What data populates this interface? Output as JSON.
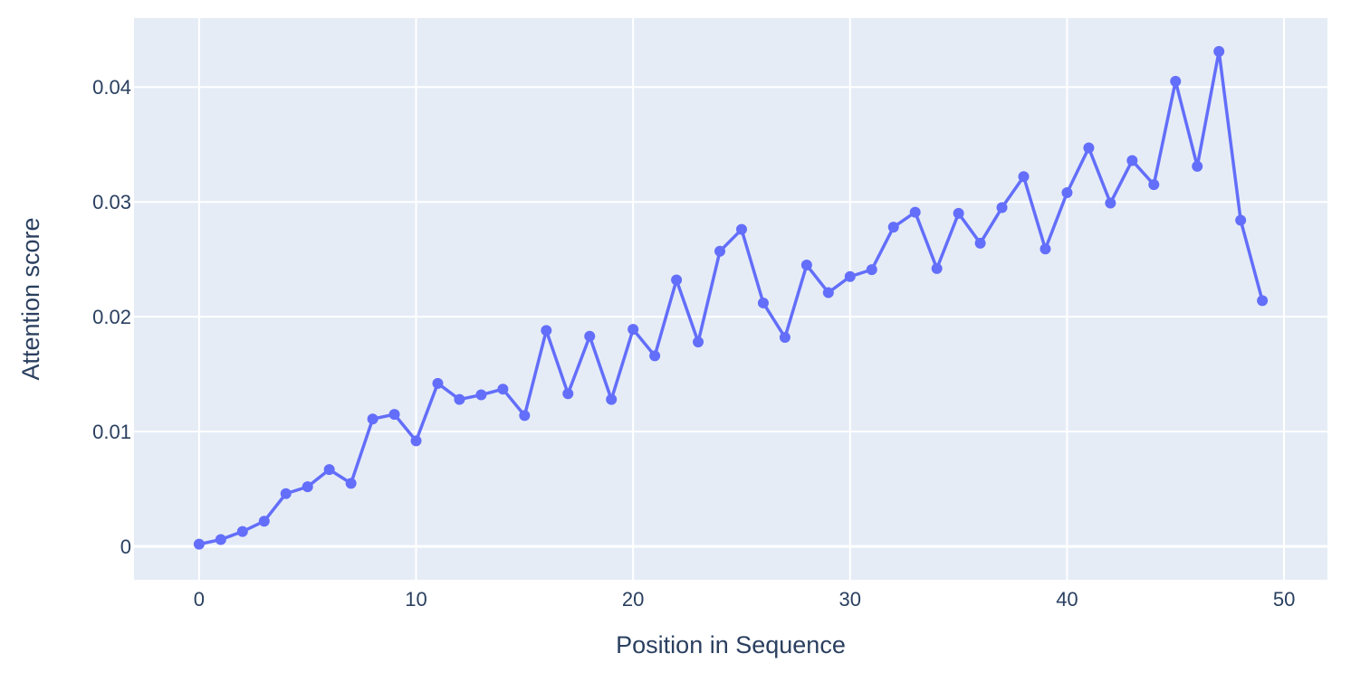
{
  "colors": {
    "plot_background": "#e5ecf6",
    "grid": "#ffffff",
    "line": "#636efa",
    "text": "#2a3f5f"
  },
  "chart_data": {
    "type": "line",
    "mode": "lines+markers",
    "title": "",
    "xlabel": "Position in Sequence",
    "ylabel": "Attention score",
    "xlim": [
      -3,
      52
    ],
    "ylim": [
      -0.0029,
      0.046
    ],
    "x_ticks": [
      0,
      10,
      20,
      30,
      40,
      50
    ],
    "x_tick_labels": [
      "0",
      "10",
      "20",
      "30",
      "40",
      "50"
    ],
    "y_ticks": [
      0,
      0.01,
      0.02,
      0.03,
      0.04
    ],
    "y_tick_labels": [
      "0",
      "0.01",
      "0.02",
      "0.03",
      "0.04"
    ],
    "grid": true,
    "legend": "none",
    "series": [
      {
        "x": [
          0,
          1,
          2,
          3,
          4,
          5,
          6,
          7,
          8,
          9,
          10,
          11,
          12,
          13,
          14,
          15,
          16,
          17,
          18,
          19,
          20,
          21,
          22,
          23,
          24,
          25,
          26,
          27,
          28,
          29,
          30,
          31,
          32,
          33,
          34,
          35,
          36,
          37,
          38,
          39,
          40,
          41,
          42,
          43,
          44,
          45,
          46,
          47,
          48,
          49
        ],
        "values": [
          0.0002,
          0.0006,
          0.0013,
          0.0022,
          0.0046,
          0.0052,
          0.0067,
          0.0055,
          0.0111,
          0.0115,
          0.0092,
          0.0142,
          0.0128,
          0.0132,
          0.0137,
          0.0114,
          0.0188,
          0.0133,
          0.0183,
          0.0128,
          0.0189,
          0.0166,
          0.0232,
          0.0178,
          0.0257,
          0.0276,
          0.0212,
          0.0182,
          0.0245,
          0.0221,
          0.0235,
          0.0241,
          0.0278,
          0.0291,
          0.0242,
          0.029,
          0.0264,
          0.0295,
          0.0322,
          0.0259,
          0.0308,
          0.0347,
          0.0299,
          0.0336,
          0.0315,
          0.0405,
          0.0331,
          0.0431,
          0.0284,
          0.0214
        ]
      }
    ]
  }
}
